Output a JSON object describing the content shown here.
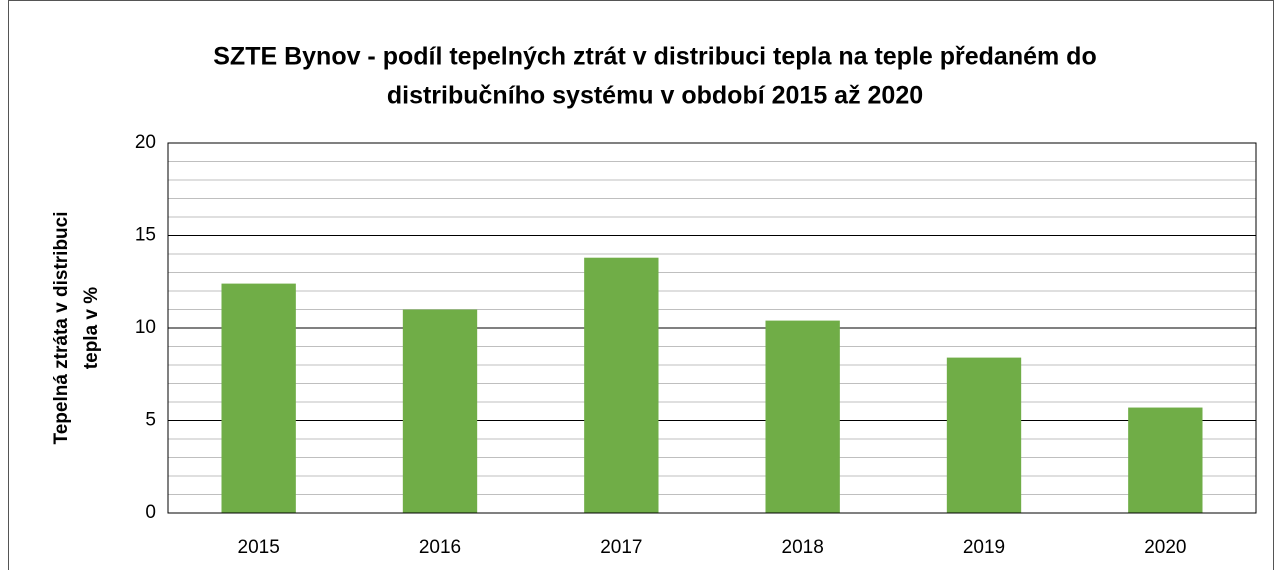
{
  "chart_data": {
    "type": "bar",
    "title": [
      "SZTE Bynov - podíl tepelných ztrát v distribuci tepla na teple předaném do",
      "distribučního systému v období 2015 až 2020"
    ],
    "y_label": [
      "Tepelná ztráta v distribuci",
      "tepla v %"
    ],
    "categories": [
      "2015",
      "2016",
      "2017",
      "2018",
      "2019",
      "2020"
    ],
    "values": [
      12.4,
      11.0,
      13.8,
      10.4,
      8.4,
      5.7
    ],
    "color": "#70ad47",
    "ylim": [
      0,
      20
    ],
    "yticks": [
      0,
      5,
      10,
      15,
      20
    ],
    "minor_yticks": [
      1,
      2,
      3,
      4,
      6,
      7,
      8,
      9,
      11,
      12,
      13,
      14,
      16,
      17,
      18,
      19
    ],
    "grid": true
  }
}
